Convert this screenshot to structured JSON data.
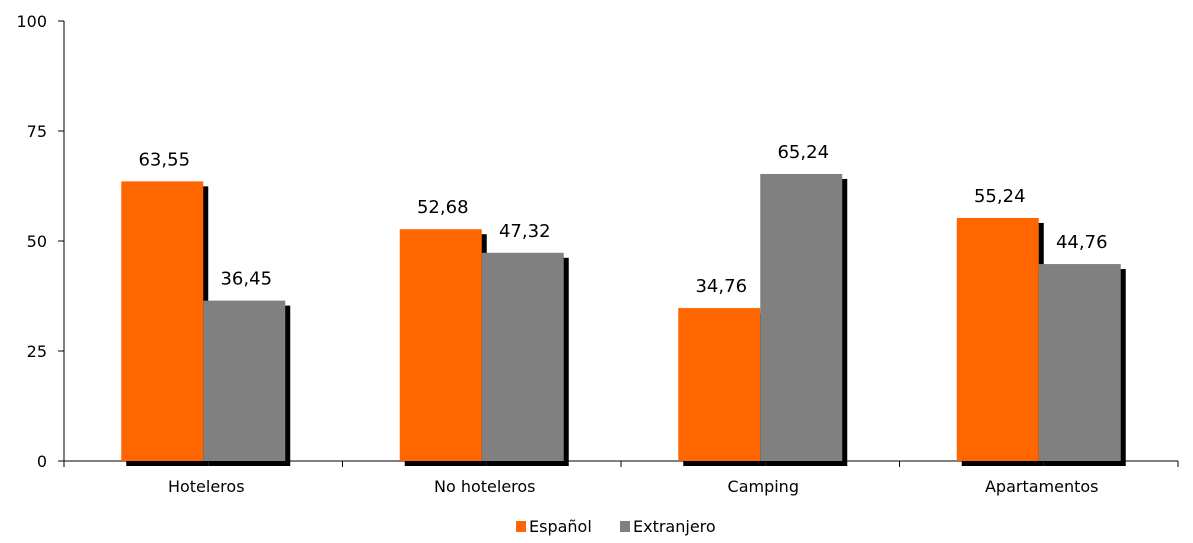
{
  "chart_data": {
    "type": "bar",
    "title": "",
    "xlabel": "",
    "ylabel": "",
    "ylim": [
      0,
      100
    ],
    "yticks": [
      0,
      25,
      50,
      75,
      100
    ],
    "grid": false,
    "legend_position": "bottom",
    "categories": [
      "Hoteleros",
      "No hoteleros",
      "Camping",
      "Apartamentos"
    ],
    "value_labels": [
      [
        "63,55",
        "36,45"
      ],
      [
        "52,68",
        "47,32"
      ],
      [
        "34,76",
        "65,24"
      ],
      [
        "55,24",
        "44,76"
      ]
    ],
    "series": [
      {
        "name": "Español",
        "values": [
          63.55,
          52.68,
          34.76,
          55.24
        ],
        "color": "#ff6600"
      },
      {
        "name": "Extranjero",
        "values": [
          36.45,
          47.32,
          65.24,
          44.76
        ],
        "color": "#808080"
      }
    ],
    "shadow_color": "#000000",
    "axis_color": "#000000"
  }
}
